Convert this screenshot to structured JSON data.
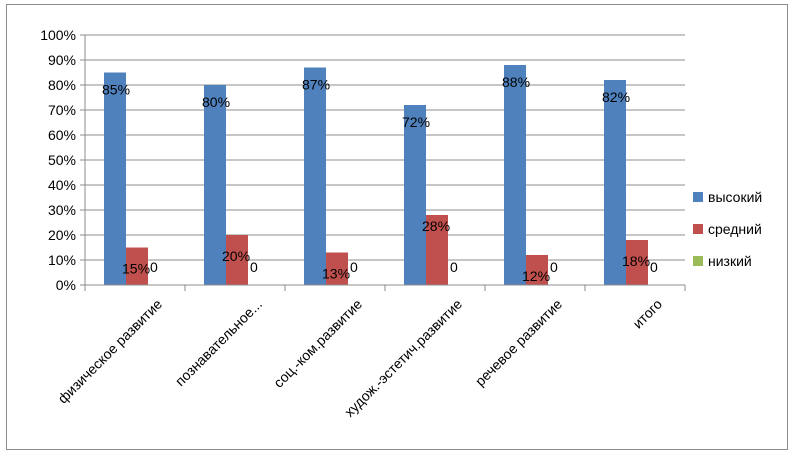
{
  "chart_data": {
    "type": "bar",
    "categories": [
      "физическое развитие",
      "познавательное...",
      "соц.-ком.развитие",
      "худож.-эстетич.развитие",
      "речевое  развитие",
      "итого"
    ],
    "series": [
      {
        "name": "высокий",
        "values": [
          85,
          80,
          87,
          72,
          88,
          82
        ],
        "labels": [
          "85%",
          "80%",
          "87%",
          "72%",
          "88%",
          "82%"
        ],
        "color": "#4f81bd"
      },
      {
        "name": "средний",
        "values": [
          15,
          20,
          13,
          28,
          12,
          18
        ],
        "labels": [
          "15%",
          "20%",
          "13%",
          "28%",
          "12%",
          "18%"
        ],
        "color": "#c0504d"
      },
      {
        "name": "низкий",
        "values": [
          0,
          0,
          0,
          0,
          0,
          0
        ],
        "labels": [
          "0",
          "0",
          "0",
          "0",
          "0",
          "0"
        ],
        "color": "#9bbb59"
      }
    ],
    "ylim": [
      0,
      100
    ],
    "y_ticks": [
      "0%",
      "10%",
      "20%",
      "30%",
      "40%",
      "50%",
      "60%",
      "70%",
      "80%",
      "90%",
      "100%"
    ],
    "grid": true,
    "legend_position": "right"
  }
}
